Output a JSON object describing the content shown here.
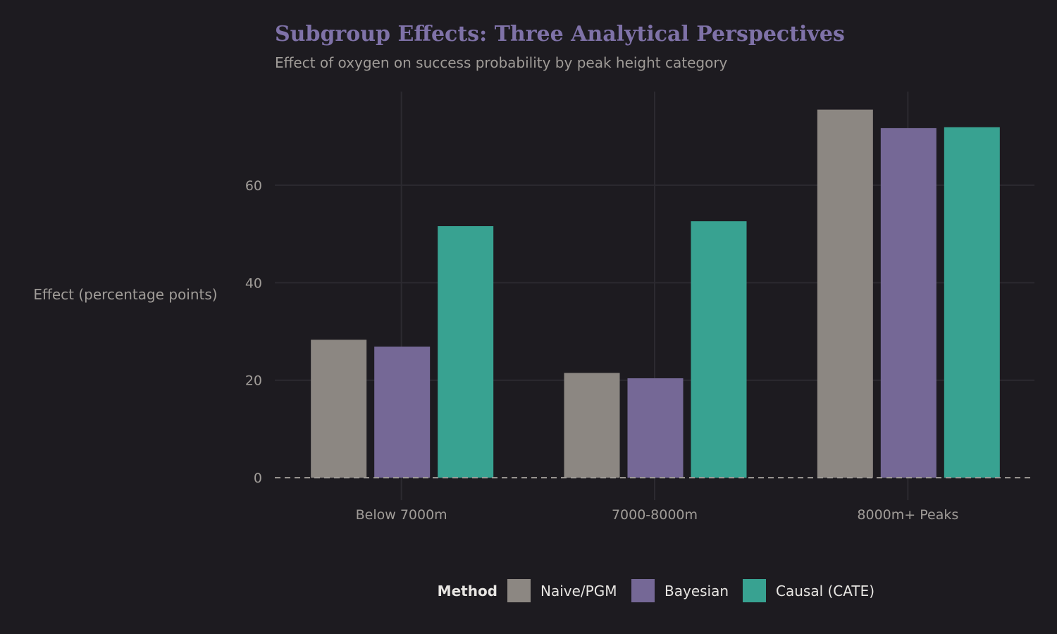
{
  "chart_data": {
    "type": "bar",
    "title": "Subgroup Effects: Three Analytical Perspectives",
    "subtitle": "Effect of oxygen on success probability by peak height category",
    "xlabel": "",
    "ylabel": "Effect (percentage points)",
    "categories": [
      "Below 7000m",
      "7000-8000m",
      "8000m+ Peaks"
    ],
    "series": [
      {
        "name": "Naive/PGM",
        "color": "#8c8782",
        "values": [
          28.3,
          21.5,
          75.5
        ]
      },
      {
        "name": "Bayesian",
        "color": "#756896",
        "values": [
          26.9,
          20.4,
          71.7
        ]
      },
      {
        "name": "Causal (CATE)",
        "color": "#38a291",
        "values": [
          51.6,
          52.6,
          71.9
        ]
      }
    ],
    "ylim": [
      -4.6,
      79.2
    ],
    "yticks": [
      0,
      20,
      40,
      60
    ],
    "grid": true,
    "reference_line": 0,
    "legend": {
      "title": "Method",
      "position": "bottom"
    }
  }
}
